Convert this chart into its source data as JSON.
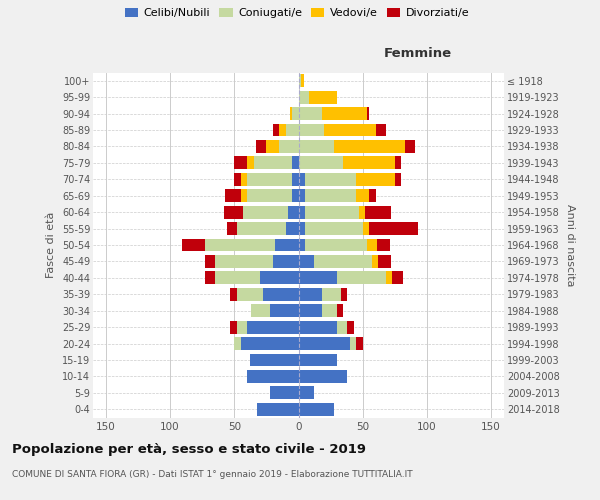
{
  "age_groups": [
    "0-4",
    "5-9",
    "10-14",
    "15-19",
    "20-24",
    "25-29",
    "30-34",
    "35-39",
    "40-44",
    "45-49",
    "50-54",
    "55-59",
    "60-64",
    "65-69",
    "70-74",
    "75-79",
    "80-84",
    "85-89",
    "90-94",
    "95-99",
    "100+"
  ],
  "birth_years": [
    "2014-2018",
    "2009-2013",
    "2004-2008",
    "1999-2003",
    "1994-1998",
    "1989-1993",
    "1984-1988",
    "1979-1983",
    "1974-1978",
    "1969-1973",
    "1964-1968",
    "1959-1963",
    "1954-1958",
    "1949-1953",
    "1944-1948",
    "1939-1943",
    "1934-1938",
    "1929-1933",
    "1924-1928",
    "1919-1923",
    "≤ 1918"
  ],
  "male": {
    "celibi": [
      32,
      22,
      40,
      38,
      45,
      40,
      22,
      28,
      30,
      20,
      18,
      10,
      8,
      5,
      5,
      5,
      0,
      0,
      0,
      0,
      0
    ],
    "coniugati": [
      0,
      0,
      0,
      0,
      5,
      8,
      15,
      20,
      35,
      45,
      55,
      38,
      35,
      35,
      35,
      30,
      15,
      10,
      5,
      0,
      0
    ],
    "vedovi": [
      0,
      0,
      0,
      0,
      0,
      0,
      0,
      0,
      0,
      0,
      0,
      0,
      0,
      5,
      5,
      5,
      10,
      5,
      2,
      0,
      0
    ],
    "divorziati": [
      0,
      0,
      0,
      0,
      0,
      5,
      0,
      5,
      8,
      8,
      18,
      8,
      15,
      12,
      5,
      10,
      8,
      5,
      0,
      0,
      0
    ]
  },
  "female": {
    "nubili": [
      28,
      12,
      38,
      30,
      40,
      30,
      18,
      18,
      30,
      12,
      5,
      5,
      5,
      5,
      5,
      0,
      0,
      0,
      0,
      0,
      0
    ],
    "coniugate": [
      0,
      0,
      0,
      0,
      5,
      8,
      12,
      15,
      38,
      45,
      48,
      45,
      42,
      40,
      40,
      35,
      28,
      20,
      18,
      8,
      2
    ],
    "vedove": [
      0,
      0,
      0,
      0,
      0,
      0,
      0,
      0,
      5,
      5,
      8,
      5,
      5,
      10,
      30,
      40,
      55,
      40,
      35,
      22,
      2
    ],
    "divorziate": [
      0,
      0,
      0,
      0,
      5,
      5,
      5,
      5,
      8,
      10,
      10,
      38,
      20,
      5,
      5,
      5,
      8,
      8,
      2,
      0,
      0
    ]
  },
  "colors": {
    "celibi": "#4472c4",
    "coniugati": "#c5d9a0",
    "vedovi": "#ffc000",
    "divorziati": "#c0000b"
  },
  "title": "Popolazione per età, sesso e stato civile - 2019",
  "subtitle": "COMUNE DI SANTA FIORA (GR) - Dati ISTAT 1° gennaio 2019 - Elaborazione TUTTITALIA.IT",
  "label_femmine": "Femmine",
  "ylabel_left": "Fasce di età",
  "ylabel_right": "Anni di nascita",
  "xlim": 160,
  "bg_color": "#f0f0f0",
  "plot_bg": "#ffffff",
  "grid_color": "#cccccc"
}
